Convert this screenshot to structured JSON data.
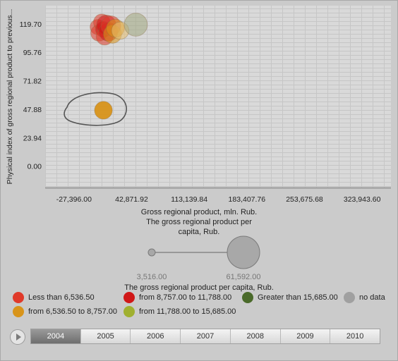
{
  "chart_data": {
    "type": "scatter",
    "title": "",
    "xlabel": "Gross regional product, mln. Rub.",
    "ylabel": "Physical index of gross regional product to previous...",
    "size_label": "The gross regional product per capita, Rub.",
    "x_ticks": [
      "-27,396.00",
      "42,871.92",
      "113,139.84",
      "183,407.76",
      "253,675.68",
      "323,943.60"
    ],
    "y_ticks": [
      "0.00",
      "23.94",
      "47.88",
      "71.82",
      "95.76",
      "119.70"
    ],
    "xlim": [
      -62530,
      359078
    ],
    "ylim": [
      -18,
      135
    ],
    "grid": true,
    "points": [
      {
        "x": 1500,
        "y": 117,
        "size": 4500,
        "color": "#e03a2a"
      },
      {
        "x": 3000,
        "y": 112,
        "size": 5800,
        "color": "#e03a2a"
      },
      {
        "x": 6500,
        "y": 121,
        "size": 6000,
        "color": "#e03a2a"
      },
      {
        "x": 8500,
        "y": 115,
        "size": 5200,
        "color": "#d01818"
      },
      {
        "x": 10000,
        "y": 109,
        "size": 6500,
        "color": "#e03a2a"
      },
      {
        "x": 12000,
        "y": 119,
        "size": 9500,
        "color": "#d01818"
      },
      {
        "x": 14500,
        "y": 113,
        "size": 9000,
        "color": "#d01818"
      },
      {
        "x": 17500,
        "y": 118,
        "size": 10500,
        "color": "#e03a2a"
      },
      {
        "x": 19500,
        "y": 111,
        "size": 8000,
        "color": "#d8941a"
      },
      {
        "x": 23000,
        "y": 116,
        "size": 7800,
        "color": "#d8941a"
      },
      {
        "x": 29000,
        "y": 114,
        "size": 7000,
        "color": "#e8c070"
      },
      {
        "x": 8500,
        "y": 47,
        "size": 7500,
        "color": "#d8941a"
      },
      {
        "x": 48000,
        "y": 119,
        "size": 16000,
        "color": "#a0a880"
      }
    ],
    "size_range": [
      "3,516.00",
      "61,592.00"
    ],
    "size_values": [
      3516,
      61592
    ]
  },
  "legend": [
    {
      "label": "Less than 6,536.50",
      "color": "#e03a2a"
    },
    {
      "label": "from 8,757.00 to 11,788.00",
      "color": "#d01818"
    },
    {
      "label": "Greater than 15,685.00",
      "color": "#4a6a2a"
    },
    {
      "label": "no data",
      "color": "#a0a0a0"
    },
    {
      "label": "from 6,536.50 to 8,757.00",
      "color": "#d8941a"
    },
    {
      "label": "from 11,788.00 to 15,685.00",
      "color": "#a0b030"
    }
  ],
  "timeline": {
    "years": [
      "2004",
      "2005",
      "2006",
      "2007",
      "2008",
      "2009",
      "2010"
    ],
    "selected": "2004"
  }
}
